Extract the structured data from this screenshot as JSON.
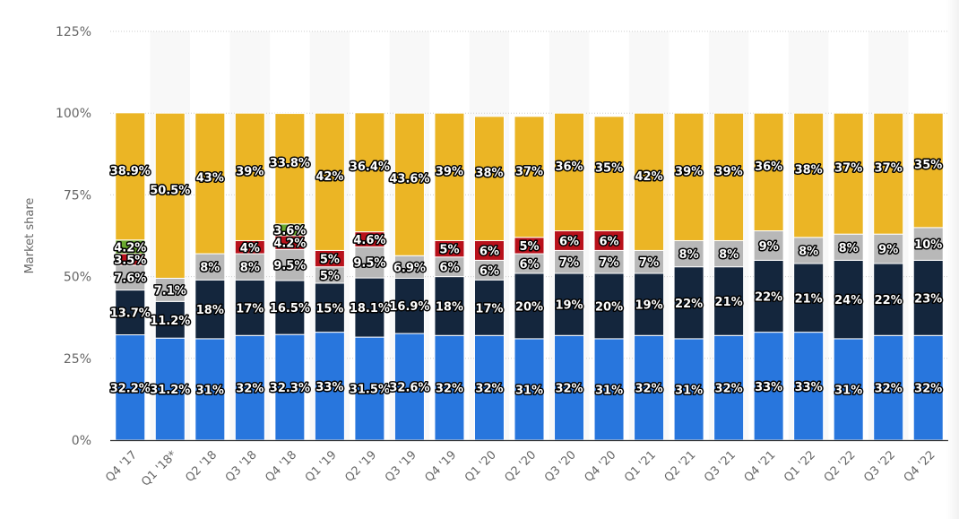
{
  "chart_data": {
    "type": "bar",
    "stacked": true,
    "title": "",
    "xlabel": "",
    "ylabel": "Market share",
    "ylim": [
      0,
      125
    ],
    "yticks": [
      0,
      25,
      50,
      75,
      100,
      125
    ],
    "ytick_labels": [
      "0%",
      "25%",
      "50%",
      "75%",
      "100%",
      "125%"
    ],
    "grid": true,
    "legend": "none",
    "categories": [
      "Q4 '17",
      "Q1 '18*",
      "Q2 '18",
      "Q3 '18",
      "Q4 '18",
      "Q1 '19",
      "Q2 '19",
      "Q3 '19",
      "Q4 '19",
      "Q1 '20",
      "Q2 '20",
      "Q3 '20",
      "Q4 '20",
      "Q1 '21",
      "Q2 '21",
      "Q3 '21",
      "Q4 '21",
      "Q1 '22",
      "Q2 '22",
      "Q3 '22",
      "Q4 '22"
    ],
    "series": [
      {
        "name": "Series 1 (blue)",
        "color": "#2876dd",
        "values": [
          32.2,
          31.2,
          31,
          32,
          32.3,
          33,
          31.5,
          32.6,
          32,
          32,
          31,
          32,
          31,
          32,
          31,
          32,
          33,
          33,
          31,
          32,
          32
        ],
        "labels": [
          "32.2%",
          "31.2%",
          "31%",
          "32%",
          "32.3%",
          "33%",
          "31.5%",
          "32.6%",
          "32%",
          "32%",
          "31%",
          "32%",
          "31%",
          "32%",
          "31%",
          "32%",
          "33%",
          "33%",
          "31%",
          "32%",
          "32%"
        ]
      },
      {
        "name": "Series 2 (dark navy)",
        "color": "#14263d",
        "values": [
          13.7,
          11.2,
          18,
          17,
          16.5,
          15,
          18.1,
          16.9,
          18,
          17,
          20,
          19,
          20,
          19,
          22,
          21,
          22,
          21,
          24,
          22,
          23
        ],
        "labels": [
          "13.7%",
          "11.2%",
          "18%",
          "17%",
          "16.5%",
          "15%",
          "18.1%",
          "16.9%",
          "18%",
          "17%",
          "20%",
          "19%",
          "20%",
          "19%",
          "22%",
          "21%",
          "22%",
          "21%",
          "24%",
          "22%",
          "23%"
        ]
      },
      {
        "name": "Series 3 (gray)",
        "color": "#b8b8b8",
        "values": [
          7.6,
          7.1,
          8,
          8,
          9.5,
          5,
          9.5,
          6.9,
          6,
          6,
          6,
          7,
          7,
          7,
          8,
          8,
          9,
          8,
          8,
          9,
          10
        ],
        "labels": [
          "7.6%",
          "7.1%",
          "8%",
          "8%",
          "9.5%",
          "5%",
          "9.5%",
          "6.9%",
          "6%",
          "6%",
          "6%",
          "7%",
          "7%",
          "7%",
          "8%",
          "8%",
          "9%",
          "8%",
          "8%",
          "9%",
          "10%"
        ]
      },
      {
        "name": "Series 4 (red)",
        "color": "#b8111b",
        "values": [
          3.5,
          0,
          0,
          4,
          4.2,
          5,
          4.6,
          0,
          5,
          6,
          5,
          6,
          6,
          0,
          0,
          0,
          0,
          0,
          0,
          0,
          0
        ],
        "labels": [
          "3.5%",
          "",
          "",
          "4%",
          "4.2%",
          "5%",
          "4.6%",
          "",
          "5%",
          "6%",
          "5%",
          "6%",
          "6%",
          "",
          "",
          "",
          "",
          "",
          "",
          "",
          ""
        ]
      },
      {
        "name": "Series 5 (green)",
        "color": "#6aaa2e",
        "values": [
          4.2,
          0,
          0,
          0,
          3.6,
          0,
          0,
          0,
          0,
          0,
          0,
          0,
          0,
          0,
          0,
          0,
          0,
          0,
          0,
          0,
          0
        ],
        "labels": [
          "4.2%",
          "",
          "",
          "",
          "3.6%",
          "",
          "",
          "",
          "",
          "",
          "",
          "",
          "",
          "",
          "",
          "",
          "",
          "",
          "",
          "",
          ""
        ]
      },
      {
        "name": "Series 6 (yellow)",
        "color": "#ebb525",
        "values": [
          38.9,
          50.5,
          43,
          39,
          33.8,
          42,
          36.4,
          43.6,
          39,
          38,
          37,
          36,
          35,
          42,
          39,
          39,
          36,
          38,
          37,
          37,
          35
        ],
        "labels": [
          "38.9%",
          "50.5%",
          "43%",
          "39%",
          "33.8%",
          "42%",
          "36.4%",
          "43.6%",
          "39%",
          "38%",
          "37%",
          "36%",
          "35%",
          "42%",
          "39%",
          "39%",
          "36%",
          "38%",
          "37%",
          "37%",
          "35%"
        ]
      }
    ]
  }
}
